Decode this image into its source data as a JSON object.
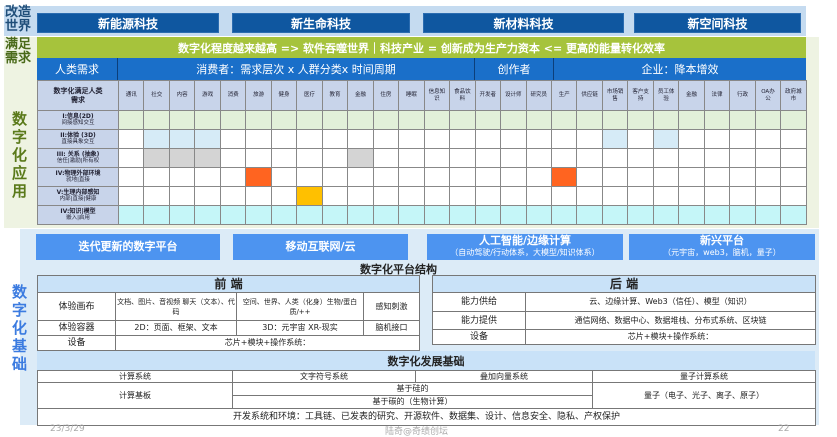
{
  "top": {
    "label": "改造世界",
    "boxes": [
      "新能源科技",
      "新生命科技",
      "新材料科技",
      "新空间科技"
    ]
  },
  "needs": {
    "label": "满足需求",
    "app_label": "数字化应用",
    "banner": "数字化程度越来越高 => 软件吞噬世界｜科技产业 = 创新成为生产力资本  <= 更高的能量转化效率",
    "groups": [
      "人类需求",
      "消费者：需求层次 x 人群分类x 时间周期",
      "创作者",
      "企业：降本增效"
    ],
    "corner": "数字化满足人类需求",
    "columns": [
      "通讯",
      "社交",
      "内容",
      "游戏",
      "消费",
      "旅游",
      "健身",
      "医疗",
      "教育",
      "金融",
      "住房",
      "睡眠",
      "信息知识",
      "食品饮料",
      "开发者",
      "设计师",
      "研究员",
      "生产",
      "供应链",
      "市场销售",
      "客户支持",
      "员工体验",
      "金融",
      "法律",
      "行政",
      "OA办公",
      "政府城市"
    ],
    "rows": [
      {
        "title": "I:信息(2D)",
        "sub": "间接感知交互",
        "base": "#e2f0d9",
        "marks": []
      },
      {
        "title": "II:体验 (3D)",
        "sub": "直接具象交互",
        "base": "#ffffff",
        "marks": [
          {
            "cols": [
              1,
              2,
              3,
              19,
              21
            ],
            "color": "#d6ebf7"
          }
        ]
      },
      {
        "title": "III: 关系 (抽象)",
        "sub": "信任|激励|所有权",
        "base": "#ffffff",
        "marks": [
          {
            "cols": [
              1,
              2,
              3,
              9
            ],
            "color": "#d4d4d4"
          }
        ]
      },
      {
        "title": "IV:物理外部环境",
        "sub": "就地|直接",
        "base": "#ffffff",
        "marks": [
          {
            "cols": [
              5,
              17
            ],
            "color": "#ff6420"
          }
        ]
      },
      {
        "title": "V:生理内部感知",
        "sub": "内部|直接|健康",
        "base": "#ffffff",
        "marks": [
          {
            "cols": [
              7
            ],
            "color": "#ffc000"
          }
        ]
      },
      {
        "title": "IV:知识|模型",
        "sub": "嵌入|启用",
        "base": "#c5f6f8",
        "marks": []
      }
    ]
  },
  "base": {
    "label": "数字化基础",
    "platforms": [
      {
        "title": "迭代更新的数字平台",
        "sub": ""
      },
      {
        "title": "移动互联网/云",
        "sub": ""
      },
      {
        "title": "人工智能/边缘计算",
        "sub": "（自动驾驶/行动体系，大模型/知识体系）"
      },
      {
        "title": "新兴平台",
        "sub": "（元宇宙，web3，脑机，量子）"
      }
    ],
    "structure_title": "数字化平台结构",
    "front": {
      "title": "前 端",
      "canvas": "体验画布",
      "canvas_2d": "文档、图片、音视频 聊天（文本）、代码",
      "canvas_3d": "空间、世界、人类（化身）生物/蛋白质/++",
      "canvas_sense": "感知刺激",
      "container": "体验容器",
      "container_2d": "2D：页面、框架、文本",
      "container_3d": "3D：元宇宙 XR-现实",
      "container_bci": "脑机接口",
      "device": "设备",
      "device_val": "芯片+模块+操作系统："
    },
    "back": {
      "title": "后 端",
      "supply": "能力供给",
      "supply_val": "云、边缘计算、Web3（信任）、模型（知识）",
      "provide": "能力提供",
      "provide_val": "通信网络、数据中心、数据堆栈、分布式系统、区块链",
      "device": "设备",
      "device_val": "芯片+模块+操作系统："
    },
    "dev_title": "数字化发展基础",
    "dev": {
      "c1": "计算系统",
      "c2": "文字符号系统",
      "c3": "叠加向量系统",
      "c4": "量子计算系统",
      "board": "计算基板",
      "silicon": "基于硅的",
      "carbon": "基于碳的（生物计算）",
      "quantum": "量子（电子、光子、离子、原子）",
      "env": "开发系统和环境：工具链、已发表的研究、开源软件、数据集、设计、信息安全、隐私、产权保护"
    }
  },
  "footer": {
    "date": "23/3/29",
    "author": "陆奇@奇绩创坛",
    "page": "22"
  },
  "colors": {
    "dark_blue": "#0f57a0",
    "green": "#a6c33c",
    "header_blue": "#1a6fc9",
    "button_blue": "#4d94f0"
  }
}
